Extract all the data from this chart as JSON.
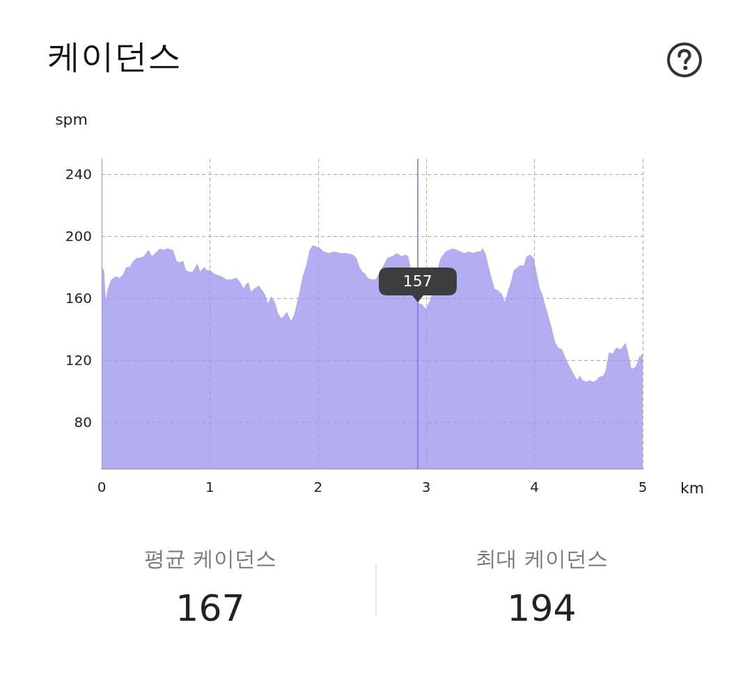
{
  "chart_data": {
    "type": "area",
    "title": "케이던스",
    "xlabel": "km",
    "ylabel": "spm",
    "x": [
      0,
      0.02,
      0.037,
      0.058,
      0.09,
      0.133,
      0.165,
      0.197,
      0.23,
      0.26,
      0.294,
      0.326,
      0.358,
      0.39,
      0.433,
      0.465,
      0.497,
      0.54,
      0.573,
      0.605,
      0.658,
      0.69,
      0.723,
      0.751,
      0.776,
      0.809,
      0.841,
      0.884,
      0.909,
      0.948,
      0.97,
      1.002,
      1.034,
      1.066,
      1.109,
      1.152,
      1.195,
      1.248,
      1.281,
      1.313,
      1.334,
      1.356,
      1.377,
      1.409,
      1.452,
      1.485,
      1.51,
      1.538,
      1.566,
      1.602,
      1.624,
      1.656,
      1.678,
      1.71,
      1.737,
      1.752,
      1.784,
      1.828,
      1.86,
      1.892,
      1.924,
      1.952,
      1.988,
      2.021,
      2.053,
      2.096,
      2.149,
      2.203,
      2.267,
      2.321,
      2.353,
      2.375,
      2.407,
      2.432,
      2.46,
      2.492,
      2.535,
      2.643,
      2.685,
      2.728,
      2.771,
      2.81,
      2.831,
      2.92,
      2.96,
      2.997,
      3.04,
      3.115,
      3.136,
      3.179,
      3.243,
      3.286,
      3.351,
      3.393,
      3.436,
      3.468,
      3.5,
      3.522,
      3.544,
      3.576,
      3.597,
      3.629,
      3.662,
      3.694,
      3.726,
      3.758,
      3.779,
      3.811,
      3.865,
      3.904,
      3.93,
      3.962,
      3.99,
      4.015,
      4.048,
      4.069,
      4.091,
      4.144,
      4.187,
      4.219,
      4.252,
      4.294,
      4.337,
      4.369,
      4.397,
      4.418,
      4.445,
      4.477,
      4.509,
      4.541,
      4.573,
      4.595,
      4.638,
      4.659,
      4.691,
      4.723,
      4.755,
      4.798,
      4.841,
      4.863,
      4.895,
      4.938,
      4.97,
      5
    ],
    "values": [
      180,
      178,
      157,
      166,
      172,
      174,
      173,
      175,
      180,
      180,
      184,
      186,
      186,
      187,
      191,
      187,
      189,
      192,
      191,
      192,
      191,
      184,
      183,
      184,
      178,
      177,
      177,
      182,
      177,
      180,
      178,
      178,
      176,
      175,
      174,
      172,
      172,
      173,
      170,
      166,
      169,
      170,
      164,
      166,
      168,
      165,
      162,
      156,
      161,
      157,
      151,
      147,
      148,
      151,
      147,
      145,
      150,
      163,
      174,
      181,
      191,
      194,
      193,
      192,
      190,
      189,
      190,
      189,
      189,
      188,
      186,
      181,
      177,
      176,
      173,
      172,
      172,
      186,
      187,
      189,
      187,
      188,
      187,
      157,
      156,
      153,
      159,
      181,
      186,
      190,
      192,
      191,
      189,
      190,
      189,
      190,
      190,
      192,
      189,
      180,
      174,
      166,
      165,
      163,
      157,
      165,
      169,
      178,
      181,
      181,
      187,
      188,
      186,
      177,
      166,
      163,
      157,
      144,
      132,
      128,
      127,
      120,
      114,
      110,
      107,
      110,
      107,
      106,
      107,
      106,
      107,
      109,
      110,
      113,
      125,
      124,
      128,
      127,
      131,
      125,
      114,
      116,
      122,
      124
    ],
    "color": "#9a92ec",
    "marker": "none",
    "line_style": "solid",
    "xlim": [
      0,
      5
    ],
    "xticks": [
      0,
      1,
      2,
      3,
      4,
      5
    ],
    "ylim": [
      50,
      250
    ],
    "yticks": [
      80,
      120,
      160,
      200,
      240
    ],
    "grid": true,
    "ref_lines": [
      {
        "axis": "x",
        "value": 2.92,
        "color": "#7b72e3"
      }
    ],
    "annotations": [
      {
        "text": "157",
        "x": 2.92,
        "y": 157
      },
      "평균 케이던스",
      "167",
      "최대 케이던스",
      "194"
    ]
  }
}
